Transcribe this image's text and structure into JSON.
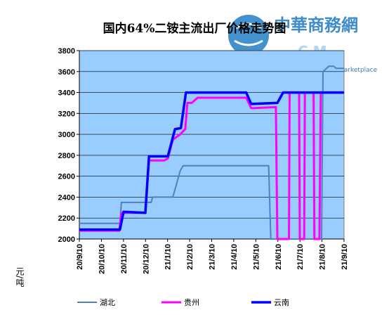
{
  "logo": {
    "text_main": "中華商務網",
    "text_sub": "Marketplace"
  },
  "chart_data": {
    "type": "line",
    "title": "国内64%二铵主流出厂价格走势图",
    "ylabel": "元/吨",
    "xlabel": "",
    "ylim": [
      2000,
      3800
    ],
    "yticks": [
      2000,
      2200,
      2400,
      2600,
      2800,
      3000,
      3200,
      3400,
      3600,
      3800
    ],
    "xlim": [
      "2020-09-10",
      "2021-09-10"
    ],
    "xticks": [
      "20/9/10",
      "20/10/10",
      "20/11/10",
      "20/12/10",
      "21/1/10",
      "21/2/10",
      "21/3/10",
      "21/4/10",
      "21/5/10",
      "21/6/10",
      "21/7/10",
      "21/8/10",
      "21/9/10"
    ],
    "grid": true,
    "legend": "bottom",
    "series": [
      {
        "name": "湖北",
        "color": "#4f81bd",
        "points": [
          [
            "2020-09-10",
            2150
          ],
          [
            "2020-11-05",
            2150
          ],
          [
            "2020-11-07",
            2350
          ],
          [
            "2020-12-18",
            2350
          ],
          [
            "2020-12-20",
            2400
          ],
          [
            "2021-01-17",
            2400
          ],
          [
            "2021-01-27",
            2650
          ],
          [
            "2021-01-31",
            2700
          ],
          [
            "2021-05-29",
            2700
          ],
          [
            "2021-06-01",
            2000
          ],
          [
            "2021-06-05",
            2000
          ],
          [
            "2021-08-10",
            2000
          ],
          [
            "2021-08-12",
            3600
          ],
          [
            "2021-08-20",
            3650
          ],
          [
            "2021-08-27",
            3650
          ],
          [
            "2021-08-30",
            3630
          ],
          [
            "2021-09-10",
            3630
          ]
        ]
      },
      {
        "name": "贵州",
        "color": "#ff00ff",
        "points": [
          [
            "2020-09-10",
            2080
          ],
          [
            "2020-11-04",
            2080
          ],
          [
            "2020-11-07",
            2250
          ],
          [
            "2020-12-10",
            2250
          ],
          [
            "2020-12-15",
            2750
          ],
          [
            "2021-01-05",
            2750
          ],
          [
            "2021-01-10",
            2770
          ],
          [
            "2021-01-17",
            2950
          ],
          [
            "2021-01-27",
            3000
          ],
          [
            "2021-02-03",
            3050
          ],
          [
            "2021-02-06",
            3300
          ],
          [
            "2021-02-12",
            3300
          ],
          [
            "2021-02-20",
            3350
          ],
          [
            "2021-04-28",
            3350
          ],
          [
            "2021-05-05",
            3250
          ],
          [
            "2021-06-08",
            3260
          ],
          [
            "2021-06-10",
            2000
          ],
          [
            "2021-06-26",
            2000
          ],
          [
            "2021-06-27",
            3400
          ],
          [
            "2021-07-10",
            3400
          ],
          [
            "2021-07-11",
            2000
          ],
          [
            "2021-07-17",
            2000
          ],
          [
            "2021-07-18",
            3400
          ],
          [
            "2021-07-30",
            3400
          ],
          [
            "2021-07-31",
            2000
          ],
          [
            "2021-08-07",
            2000
          ],
          [
            "2021-08-09",
            3400
          ],
          [
            "2021-09-10",
            3400
          ]
        ]
      },
      {
        "name": "云南",
        "color": "#0000ff",
        "points": [
          [
            "2020-09-10",
            2090
          ],
          [
            "2020-11-05",
            2090
          ],
          [
            "2020-11-10",
            2260
          ],
          [
            "2020-12-10",
            2250
          ],
          [
            "2020-12-15",
            2790
          ],
          [
            "2021-01-10",
            2790
          ],
          [
            "2021-01-20",
            3050
          ],
          [
            "2021-01-28",
            3060
          ],
          [
            "2021-02-04",
            3400
          ],
          [
            "2021-04-28",
            3400
          ],
          [
            "2021-05-05",
            3290
          ],
          [
            "2021-06-10",
            3300
          ],
          [
            "2021-06-18",
            3400
          ],
          [
            "2021-09-10",
            3400
          ]
        ]
      }
    ]
  }
}
